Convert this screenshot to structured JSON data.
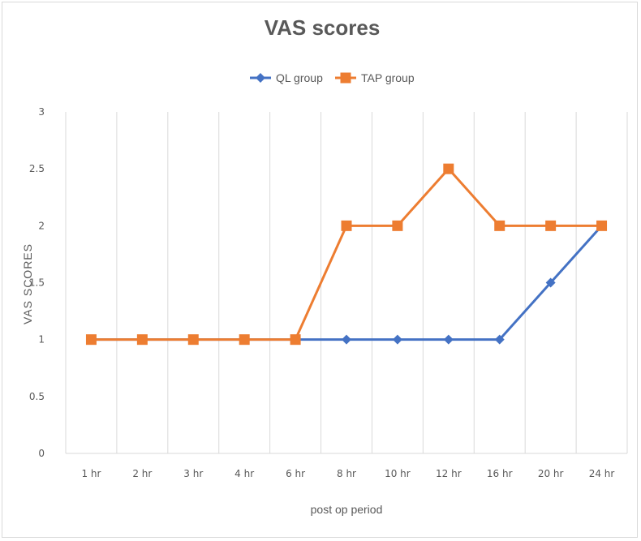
{
  "chart_data": {
    "type": "line",
    "title": "VAS scores",
    "xlabel": "post op period",
    "ylabel": "VAS SCORES",
    "categories": [
      "1 hr",
      "2 hr",
      "3 hr",
      "4 hr",
      "6 hr",
      "8 hr",
      "10 hr",
      "12 hr",
      "16 hr",
      "20 hr",
      "24 hr"
    ],
    "ylim": [
      0,
      3
    ],
    "yticks": [
      "0",
      "0.5",
      "1",
      "1.5",
      "2",
      "2.5",
      "3"
    ],
    "grid": "vertical",
    "legend_position": "top",
    "series": [
      {
        "name": "QL group",
        "color": "#4472c4",
        "marker": "diamond",
        "values": [
          1,
          1,
          1,
          1,
          1,
          1,
          1,
          1,
          1,
          1.5,
          2
        ]
      },
      {
        "name": "TAP group",
        "color": "#ed7d31",
        "marker": "square",
        "values": [
          1,
          1,
          1,
          1,
          1,
          2,
          2,
          2.5,
          2,
          2,
          2
        ]
      }
    ]
  }
}
